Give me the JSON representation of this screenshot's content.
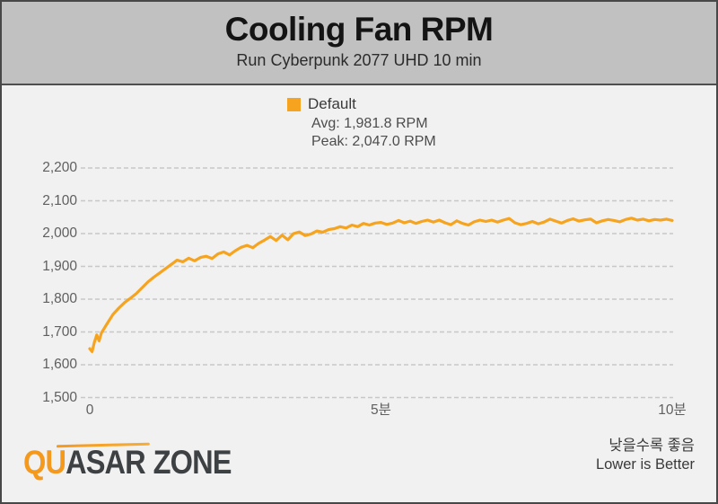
{
  "header": {
    "title": "Cooling Fan RPM",
    "subtitle": "Run Cyberpunk 2077 UHD 10 min"
  },
  "legend": {
    "series_label": "Default",
    "avg_text": "Avg: 1,981.8 RPM",
    "peak_text": "Peak: 2,047.0 RPM",
    "swatch_color": "#f6a41f"
  },
  "footer": {
    "logo_orange": "QU",
    "logo_dark1": "ASAR",
    "logo_dark2": "ZONE",
    "note_korean": "낮을수록 좋음",
    "note_english": "Lower is Better"
  },
  "colors": {
    "accent_orange": "#f6a41f",
    "header_bg": "#c1c1c1",
    "body_bg": "#f1f1f1",
    "grid": "#c8c8c8",
    "tick_text": "#5f5f5f",
    "frame_border": "#484848"
  },
  "chart_data": {
    "type": "line",
    "title": "Cooling Fan RPM",
    "subtitle": "Run Cyberpunk 2077 UHD 10 min",
    "xlabel": "",
    "ylabel": "",
    "xlim": [
      0,
      10
    ],
    "ylim": [
      1500,
      2200
    ],
    "grid": "horizontal-dashed",
    "legend_position": "top-center",
    "x_ticks": [
      {
        "t": 0,
        "label": "0"
      },
      {
        "t": 5,
        "label": "5분"
      },
      {
        "t": 10,
        "label": "10분"
      }
    ],
    "y_ticks": [
      {
        "v": 2200,
        "label": "2,200"
      },
      {
        "v": 2100,
        "label": "2,100"
      },
      {
        "v": 2000,
        "label": "2,000"
      },
      {
        "v": 1900,
        "label": "1,900"
      },
      {
        "v": 1800,
        "label": "1,800"
      },
      {
        "v": 1700,
        "label": "1,700"
      },
      {
        "v": 1600,
        "label": "1,600"
      },
      {
        "v": 1500,
        "label": "1,500"
      }
    ],
    "series": [
      {
        "name": "Default",
        "color": "#f6a41f",
        "avg_rpm": 1981.8,
        "peak_rpm": 2047.0,
        "points": [
          [
            0,
            1649
          ],
          [
            0.04,
            1640
          ],
          [
            0.08,
            1669
          ],
          [
            0.12,
            1691
          ],
          [
            0.16,
            1673
          ],
          [
            0.2,
            1697
          ],
          [
            0.3,
            1726
          ],
          [
            0.4,
            1754
          ],
          [
            0.5,
            1773
          ],
          [
            0.6,
            1790
          ],
          [
            0.7,
            1803
          ],
          [
            0.8,
            1817
          ],
          [
            0.9,
            1835
          ],
          [
            1.0,
            1853
          ],
          [
            1.1,
            1867
          ],
          [
            1.2,
            1880
          ],
          [
            1.3,
            1893
          ],
          [
            1.4,
            1906
          ],
          [
            1.5,
            1919
          ],
          [
            1.6,
            1914
          ],
          [
            1.7,
            1925
          ],
          [
            1.8,
            1917
          ],
          [
            1.9,
            1927
          ],
          [
            2.0,
            1931
          ],
          [
            2.1,
            1924
          ],
          [
            2.2,
            1938
          ],
          [
            2.3,
            1944
          ],
          [
            2.4,
            1935
          ],
          [
            2.5,
            1948
          ],
          [
            2.6,
            1958
          ],
          [
            2.7,
            1964
          ],
          [
            2.8,
            1957
          ],
          [
            2.9,
            1970
          ],
          [
            3.0,
            1980
          ],
          [
            3.1,
            1991
          ],
          [
            3.2,
            1979
          ],
          [
            3.3,
            1995
          ],
          [
            3.4,
            1981
          ],
          [
            3.5,
            2000
          ],
          [
            3.6,
            2005
          ],
          [
            3.7,
            1994
          ],
          [
            3.8,
            1999
          ],
          [
            3.9,
            2008
          ],
          [
            4.0,
            2004
          ],
          [
            4.1,
            2012
          ],
          [
            4.2,
            2015
          ],
          [
            4.3,
            2021
          ],
          [
            4.4,
            2017
          ],
          [
            4.5,
            2026
          ],
          [
            4.6,
            2021
          ],
          [
            4.7,
            2031
          ],
          [
            4.8,
            2026
          ],
          [
            4.9,
            2032
          ],
          [
            5.0,
            2034
          ],
          [
            5.1,
            2028
          ],
          [
            5.2,
            2032
          ],
          [
            5.3,
            2040
          ],
          [
            5.4,
            2033
          ],
          [
            5.5,
            2038
          ],
          [
            5.6,
            2031
          ],
          [
            5.7,
            2037
          ],
          [
            5.8,
            2041
          ],
          [
            5.9,
            2035
          ],
          [
            6.0,
            2041
          ],
          [
            6.1,
            2033
          ],
          [
            6.2,
            2027
          ],
          [
            6.3,
            2039
          ],
          [
            6.4,
            2031
          ],
          [
            6.5,
            2026
          ],
          [
            6.6,
            2036
          ],
          [
            6.7,
            2041
          ],
          [
            6.8,
            2037
          ],
          [
            6.9,
            2041
          ],
          [
            7.0,
            2035
          ],
          [
            7.1,
            2041
          ],
          [
            7.2,
            2046
          ],
          [
            7.3,
            2033
          ],
          [
            7.4,
            2027
          ],
          [
            7.5,
            2031
          ],
          [
            7.6,
            2037
          ],
          [
            7.7,
            2030
          ],
          [
            7.8,
            2035
          ],
          [
            7.9,
            2044
          ],
          [
            8.0,
            2038
          ],
          [
            8.1,
            2032
          ],
          [
            8.2,
            2040
          ],
          [
            8.3,
            2045
          ],
          [
            8.4,
            2038
          ],
          [
            8.5,
            2042
          ],
          [
            8.6,
            2044
          ],
          [
            8.7,
            2033
          ],
          [
            8.8,
            2039
          ],
          [
            8.9,
            2043
          ],
          [
            9.0,
            2040
          ],
          [
            9.1,
            2036
          ],
          [
            9.2,
            2043
          ],
          [
            9.3,
            2047
          ],
          [
            9.4,
            2041
          ],
          [
            9.5,
            2044
          ],
          [
            9.6,
            2039
          ],
          [
            9.7,
            2043
          ],
          [
            9.8,
            2041
          ],
          [
            9.9,
            2044
          ],
          [
            10.0,
            2040
          ]
        ]
      }
    ]
  }
}
